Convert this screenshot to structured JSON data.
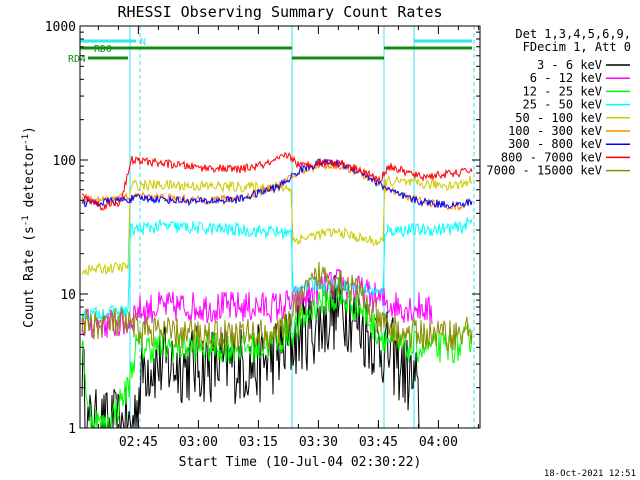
{
  "chart_data": {
    "type": "line",
    "title": "RHESSI Observing Summary Count Rates",
    "xlabel": "Start Time (10-Jul-04 02:30:22)",
    "ylabel": "Count Rate (s-1 detector-1)",
    "ylabel_parts": {
      "a": "Count Rate (s",
      "b": "-1",
      "c": " detector",
      "d": "-1",
      "e": ")"
    },
    "y_scale": "log",
    "ylim": [
      1,
      1000
    ],
    "xlim_minutes": [
      0,
      100
    ],
    "grid": false,
    "x_ticks": [
      {
        "min": 14.6,
        "label": "02:45"
      },
      {
        "min": 29.6,
        "label": "03:00"
      },
      {
        "min": 44.6,
        "label": "03:15"
      },
      {
        "min": 59.6,
        "label": "03:30"
      },
      {
        "min": 74.6,
        "label": "03:45"
      },
      {
        "min": 89.6,
        "label": "04:00"
      }
    ],
    "y_ticks": [
      {
        "v": 1,
        "label": "1"
      },
      {
        "v": 10,
        "label": "10"
      },
      {
        "v": 100,
        "label": "100"
      },
      {
        "v": 1000,
        "label": "1000"
      }
    ],
    "legend_header": [
      "Det 1,3,4,5,6,9,",
      "FDecim 1, Att 0"
    ],
    "legend_placement": "right",
    "footer_date": "18-Oct-2021 12:51",
    "flags": [
      {
        "label": "N",
        "color": "#33e6f0",
        "segments": [
          [
            0,
            14
          ],
          [
            83.5,
            98
          ]
        ]
      },
      {
        "label": "RD0",
        "color": "#138c13",
        "segments": [
          [
            0,
            53
          ],
          [
            76,
            98
          ]
        ]
      },
      {
        "label": "RD4",
        "color": "#138c13",
        "segments": [
          [
            2,
            12
          ],
          [
            53,
            76
          ]
        ]
      }
    ],
    "attenuator_lines": [
      {
        "min": 12.5,
        "style": "solid"
      },
      {
        "min": 15.0,
        "style": "dashed"
      },
      {
        "min": 53.0,
        "style": "solid"
      },
      {
        "min": 76.0,
        "style": "solid"
      },
      {
        "min": 83.5,
        "style": "solid"
      },
      {
        "min": 98.5,
        "style": "dashed"
      }
    ],
    "series": [
      {
        "name": "3 - 6 keV",
        "color": "#000000",
        "noise": 0.3,
        "points": [
          [
            0.5,
            3
          ],
          [
            2,
            1
          ],
          [
            13,
            1
          ],
          [
            15,
            2
          ],
          [
            16,
            3
          ],
          [
            25,
            3
          ],
          [
            35,
            3
          ],
          [
            45,
            3
          ],
          [
            52,
            4
          ],
          [
            55,
            5
          ],
          [
            60,
            6
          ],
          [
            65,
            8
          ],
          [
            68,
            7
          ],
          [
            72,
            5
          ],
          [
            76,
            4
          ],
          [
            80,
            3
          ],
          [
            84,
            2
          ],
          [
            85,
            1
          ]
        ]
      },
      {
        "name": "6 - 12 keV",
        "color": "#ff00ff",
        "noise": 0.12,
        "points": [
          [
            0.5,
            6
          ],
          [
            12,
            6
          ],
          [
            14,
            7.5
          ],
          [
            20,
            8
          ],
          [
            30,
            8
          ],
          [
            40,
            8
          ],
          [
            50,
            8
          ],
          [
            55,
            9
          ],
          [
            60,
            11
          ],
          [
            65,
            12
          ],
          [
            70,
            10.5
          ],
          [
            75,
            9
          ],
          [
            80,
            8
          ],
          [
            86,
            8
          ],
          [
            88,
            7
          ]
        ]
      },
      {
        "name": "12 - 25 keV",
        "color": "#00ff00",
        "noise": 0.12,
        "points": [
          [
            0.5,
            5
          ],
          [
            2,
            1.3
          ],
          [
            6,
            1
          ],
          [
            8,
            1.2
          ],
          [
            12,
            2
          ],
          [
            14,
            4
          ],
          [
            25,
            4
          ],
          [
            35,
            4
          ],
          [
            45,
            4
          ],
          [
            50,
            4.5
          ],
          [
            55,
            6
          ],
          [
            60,
            9
          ],
          [
            65,
            9
          ],
          [
            70,
            8
          ],
          [
            75,
            5
          ],
          [
            80,
            4
          ],
          [
            85,
            4
          ],
          [
            95,
            4
          ],
          [
            98,
            5
          ]
        ]
      },
      {
        "name": "25 - 50 keV",
        "color": "#00ffff",
        "noise": 0.05,
        "points": [
          [
            0.5,
            7
          ],
          [
            12,
            7.5
          ],
          [
            12.6,
            30
          ],
          [
            20,
            32
          ],
          [
            30,
            31
          ],
          [
            40,
            30
          ],
          [
            50,
            29
          ],
          [
            52.9,
            28
          ],
          [
            53.1,
            11
          ],
          [
            60,
            12
          ],
          [
            65,
            12
          ],
          [
            70,
            11
          ],
          [
            75.9,
            10
          ],
          [
            76.1,
            30
          ],
          [
            85,
            30
          ],
          [
            95,
            31
          ],
          [
            98,
            35
          ]
        ]
      },
      {
        "name": "50 - 100 keV",
        "color": "#cccc00",
        "noise": 0.04,
        "points": [
          [
            0.5,
            15
          ],
          [
            12,
            16
          ],
          [
            12.6,
            65
          ],
          [
            20,
            65
          ],
          [
            30,
            64
          ],
          [
            40,
            63
          ],
          [
            52.9,
            62
          ],
          [
            53.1,
            25
          ],
          [
            60,
            28
          ],
          [
            65,
            29
          ],
          [
            70,
            26
          ],
          [
            75.9,
            24
          ],
          [
            76.1,
            70
          ],
          [
            85,
            66
          ],
          [
            95,
            65
          ],
          [
            98,
            72
          ]
        ]
      },
      {
        "name": "100 - 300 keV",
        "color": "#ff8800",
        "noise": 0.03,
        "points": [
          [
            0.5,
            50
          ],
          [
            5,
            50
          ],
          [
            10,
            52
          ],
          [
            15,
            54
          ],
          [
            20,
            53
          ],
          [
            30,
            50
          ],
          [
            40,
            52
          ],
          [
            50,
            65
          ],
          [
            55,
            82
          ],
          [
            60,
            92
          ],
          [
            65,
            90
          ],
          [
            70,
            80
          ],
          [
            75,
            65
          ],
          [
            80,
            55
          ],
          [
            85,
            50
          ],
          [
            90,
            46
          ],
          [
            95,
            45
          ],
          [
            98,
            50
          ]
        ]
      },
      {
        "name": "300 - 800 keV",
        "color": "#0000ff",
        "noise": 0.03,
        "points": [
          [
            0.5,
            48
          ],
          [
            5,
            48
          ],
          [
            10,
            50
          ],
          [
            15,
            52
          ],
          [
            20,
            51
          ],
          [
            30,
            49
          ],
          [
            40,
            51
          ],
          [
            50,
            64
          ],
          [
            55,
            84
          ],
          [
            60,
            96
          ],
          [
            65,
            94
          ],
          [
            70,
            82
          ],
          [
            75,
            66
          ],
          [
            80,
            54
          ],
          [
            85,
            49
          ],
          [
            90,
            47
          ],
          [
            95,
            46
          ],
          [
            98,
            49
          ]
        ]
      },
      {
        "name": "800 - 7000 keV",
        "color": "#ff0000",
        "noise": 0.03,
        "points": [
          [
            0.5,
            55
          ],
          [
            5,
            45
          ],
          [
            10,
            48
          ],
          [
            13,
            100
          ],
          [
            20,
            95
          ],
          [
            30,
            88
          ],
          [
            40,
            85
          ],
          [
            48,
            95
          ],
          [
            52,
            110
          ],
          [
            55,
            90
          ],
          [
            60,
            97
          ],
          [
            65,
            95
          ],
          [
            70,
            85
          ],
          [
            75,
            70
          ],
          [
            77,
            90
          ],
          [
            85,
            75
          ],
          [
            95,
            80
          ],
          [
            98,
            85
          ]
        ]
      },
      {
        "name": "7000 - 15000 keV",
        "color": "#8b8b00",
        "noise": 0.12,
        "points": [
          [
            0.5,
            6
          ],
          [
            10,
            6
          ],
          [
            15,
            5.5
          ],
          [
            25,
            5
          ],
          [
            35,
            5
          ],
          [
            45,
            5
          ],
          [
            50,
            5
          ],
          [
            55,
            9
          ],
          [
            60,
            14
          ],
          [
            65,
            13
          ],
          [
            70,
            10
          ],
          [
            75,
            6
          ],
          [
            80,
            5
          ],
          [
            85,
            5
          ],
          [
            95,
            5
          ],
          [
            98,
            5.5
          ]
        ]
      }
    ]
  }
}
